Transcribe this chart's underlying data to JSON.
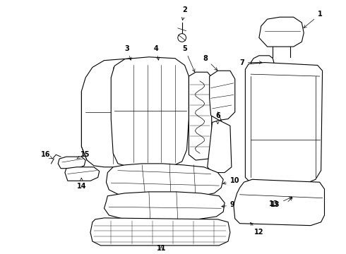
{
  "bg_color": "#ffffff",
  "line_color": "#000000",
  "lw": 0.8,
  "fs": 7.0
}
